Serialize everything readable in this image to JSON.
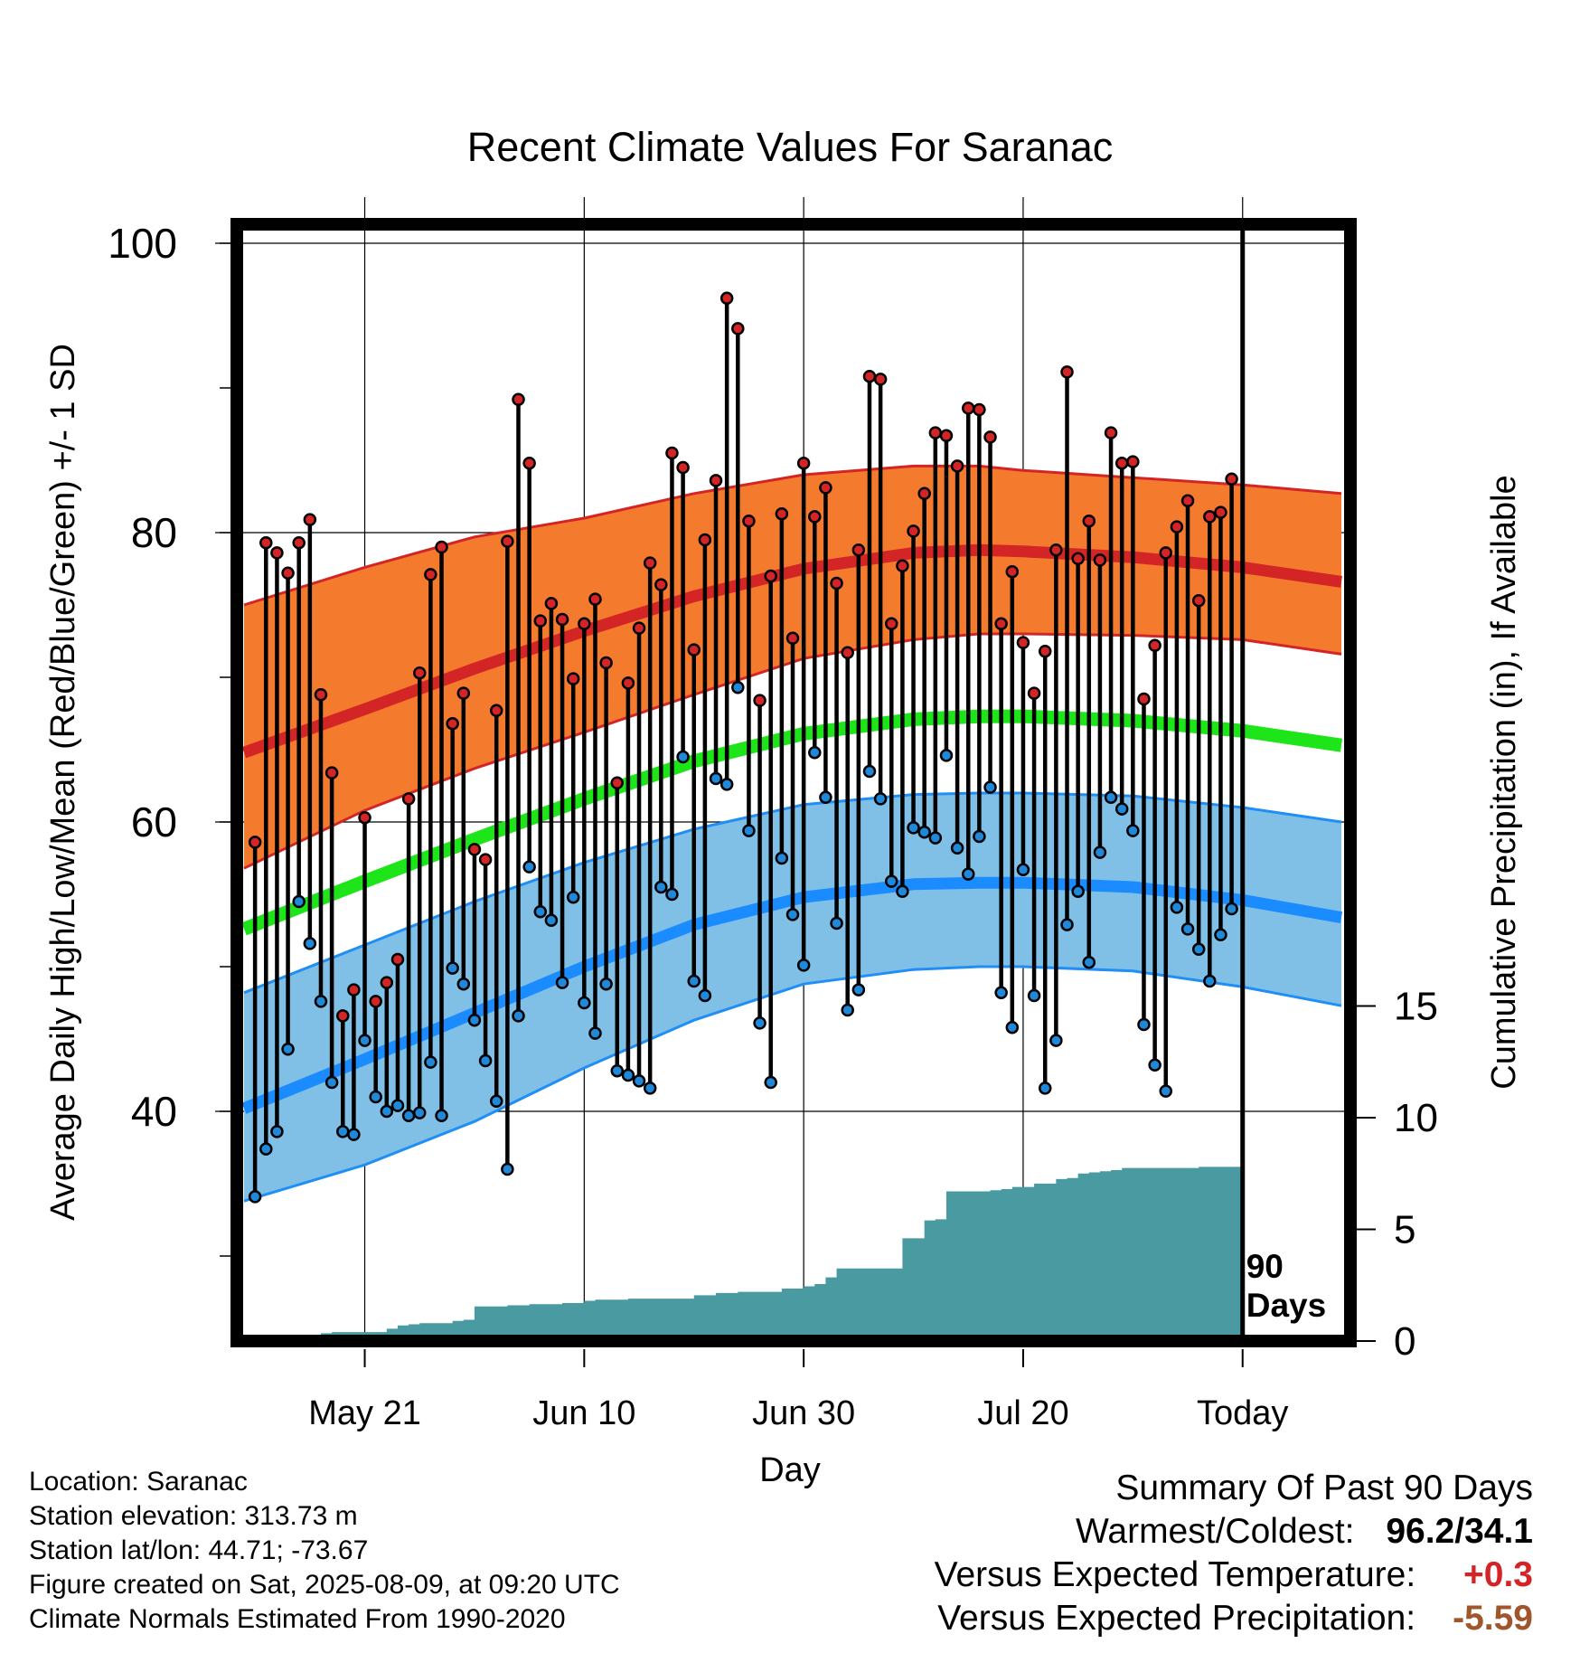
{
  "chart_data": {
    "type": "line",
    "title": "Recent Climate Values For Saranac",
    "xlabel": "Day",
    "ylabel": "Average Daily High/Low/Mean (Red/Blue/Green) +/- 1 SD",
    "y2label": "Cumulative Precipitation (in), If Available",
    "xlim": [
      -11,
      89
    ],
    "ylim": [
      26,
      102
    ],
    "y2lim": [
      0,
      20
    ],
    "x_tick_labels": [
      {
        "x": 0,
        "label": "May 21"
      },
      {
        "x": 20,
        "label": "Jun 10"
      },
      {
        "x": 40,
        "label": "Jun 30"
      },
      {
        "x": 60,
        "label": "Jul 20"
      },
      {
        "x": 80,
        "label": "Today"
      }
    ],
    "y_ticks": [
      40,
      60,
      80,
      100
    ],
    "y2_ticks": [
      0,
      5,
      10,
      15
    ],
    "grid": true,
    "today_marker": {
      "x": 80,
      "label_line1": "90",
      "label_line2": "Days"
    },
    "normals": {
      "x": [
        -11,
        0,
        10,
        20,
        30,
        40,
        50,
        56,
        60,
        70,
        80,
        89
      ],
      "high_mean": [
        64.8,
        67.8,
        70.6,
        73.2,
        75.6,
        77.5,
        78.6,
        78.8,
        78.7,
        78.3,
        77.6,
        76.6
      ],
      "high_upper": [
        75.0,
        77.6,
        79.7,
        81.0,
        82.7,
        84.0,
        84.6,
        84.6,
        84.3,
        83.8,
        83.3,
        82.7
      ],
      "high_lower": [
        56.8,
        60.8,
        63.7,
        66.2,
        68.8,
        71.3,
        72.6,
        73.0,
        73.0,
        72.9,
        72.6,
        71.6
      ],
      "mean": [
        52.6,
        55.9,
        58.8,
        61.6,
        64.2,
        66.1,
        67.1,
        67.3,
        67.3,
        67.0,
        66.3,
        65.3
      ],
      "low_mean": [
        40.2,
        43.6,
        46.8,
        50.0,
        52.9,
        54.8,
        55.7,
        55.8,
        55.8,
        55.5,
        54.6,
        53.4
      ],
      "low_upper": [
        48.2,
        51.5,
        54.5,
        57.2,
        59.5,
        61.2,
        61.9,
        62.0,
        62.0,
        61.8,
        61.0,
        60.0
      ],
      "low_lower": [
        33.8,
        36.3,
        39.3,
        43.0,
        46.3,
        48.8,
        49.8,
        50.0,
        50.0,
        49.7,
        48.6,
        47.3
      ]
    },
    "observed": {
      "x": [
        -10,
        -9,
        -8,
        -7,
        -6,
        -5,
        -4,
        -3,
        -2,
        -1,
        0,
        1,
        2,
        3,
        4,
        5,
        6,
        7,
        8,
        9,
        10,
        11,
        12,
        13,
        14,
        15,
        16,
        17,
        18,
        19,
        20,
        21,
        22,
        23,
        24,
        25,
        26,
        27,
        28,
        29,
        30,
        31,
        32,
        33,
        34,
        35,
        36,
        37,
        38,
        39,
        40,
        41,
        42,
        43,
        44,
        45,
        46,
        47,
        48,
        49,
        50,
        51,
        52,
        53,
        54,
        55,
        56,
        57,
        58,
        59,
        60,
        61,
        62,
        63,
        64,
        65,
        66,
        67,
        68,
        69,
        70,
        71,
        72,
        73,
        74,
        75,
        76,
        77,
        78,
        79
      ],
      "high": [
        58.6,
        79.3,
        78.6,
        77.2,
        79.3,
        80.9,
        68.8,
        63.4,
        46.6,
        48.4,
        60.3,
        47.6,
        48.9,
        50.5,
        61.6,
        70.3,
        77.1,
        79.0,
        66.8,
        68.9,
        58.1,
        57.4,
        67.7,
        79.4,
        89.2,
        84.8,
        73.9,
        75.1,
        74.0,
        69.9,
        73.7,
        75.4,
        71.0,
        62.7,
        69.6,
        73.4,
        77.9,
        76.4,
        85.5,
        84.5,
        71.9,
        79.5,
        83.6,
        96.2,
        94.1,
        80.8,
        68.4,
        77.0,
        81.3,
        72.7,
        84.8,
        81.1,
        83.1,
        76.5,
        71.7,
        78.8,
        90.8,
        90.6,
        73.7,
        77.7,
        80.1,
        82.7,
        86.9,
        86.7,
        84.6,
        88.6,
        88.5,
        86.6,
        73.7,
        77.3,
        72.4,
        68.9,
        71.8,
        78.8,
        91.1,
        78.2,
        80.8,
        78.1,
        86.9,
        84.8,
        84.9,
        68.5,
        72.2,
        78.6,
        80.4,
        82.2,
        75.3,
        81.1,
        81.4,
        83.7
      ],
      "low": [
        34.1,
        37.4,
        38.6,
        44.3,
        54.5,
        51.6,
        47.6,
        42.0,
        38.6,
        38.4,
        44.9,
        41.0,
        40.0,
        40.4,
        39.7,
        39.9,
        43.4,
        39.7,
        49.9,
        48.8,
        46.3,
        43.5,
        40.7,
        36.0,
        46.6,
        56.9,
        53.8,
        53.2,
        48.9,
        54.8,
        47.5,
        45.4,
        48.8,
        42.8,
        42.5,
        42.1,
        41.6,
        55.5,
        55.0,
        64.5,
        49.0,
        48.0,
        63.0,
        62.6,
        69.3,
        59.4,
        46.1,
        42.0,
        57.5,
        53.6,
        50.1,
        64.8,
        61.7,
        53.0,
        47.0,
        48.4,
        63.5,
        61.6,
        55.9,
        55.2,
        59.6,
        59.3,
        58.9,
        64.6,
        58.2,
        56.4,
        59.0,
        62.4,
        48.2,
        45.8,
        56.7,
        48.0,
        41.6,
        44.9,
        52.9,
        55.2,
        50.3,
        57.9,
        61.7,
        60.9,
        59.4,
        46.0,
        43.2,
        41.4,
        54.1,
        52.6,
        51.2,
        49.0,
        52.2,
        54.0
      ]
    },
    "precip": {
      "x": [
        -10,
        -6,
        -4,
        -3,
        -1,
        1,
        2,
        3,
        4,
        5,
        6,
        7,
        8,
        9,
        10,
        11,
        12,
        13,
        14,
        15,
        16,
        17,
        18,
        19,
        20,
        21,
        22,
        23,
        24,
        25,
        26,
        27,
        28,
        29,
        30,
        31,
        32,
        33,
        34,
        35,
        36,
        37,
        38,
        39,
        40,
        41,
        42,
        43,
        44,
        45,
        46,
        47,
        48,
        49,
        50,
        51,
        52,
        53,
        54,
        55,
        56,
        57,
        58,
        59,
        60,
        61,
        62,
        63,
        64,
        65,
        66,
        67,
        68,
        69,
        70,
        71,
        72,
        73,
        74,
        75,
        76,
        77,
        78,
        79
      ],
      "y": [
        0,
        0,
        0.35,
        0.4,
        0.4,
        0.4,
        0.55,
        0.7,
        0.75,
        0.8,
        0.8,
        0.8,
        0.9,
        0.95,
        1.55,
        1.55,
        1.55,
        1.6,
        1.6,
        1.65,
        1.65,
        1.65,
        1.7,
        1.7,
        1.8,
        1.85,
        1.85,
        1.85,
        1.9,
        1.9,
        1.9,
        1.9,
        1.9,
        1.9,
        2.05,
        2.05,
        2.15,
        2.15,
        2.2,
        2.2,
        2.2,
        2.2,
        2.35,
        2.35,
        2.45,
        2.55,
        2.85,
        3.25,
        3.25,
        3.25,
        3.25,
        3.25,
        3.25,
        4.6,
        4.6,
        5.4,
        5.45,
        6.7,
        6.7,
        6.7,
        6.7,
        6.75,
        6.8,
        6.9,
        6.9,
        7.05,
        7.05,
        7.25,
        7.3,
        7.5,
        7.55,
        7.6,
        7.65,
        7.75,
        7.75,
        7.75,
        7.75,
        7.75,
        7.75,
        7.75,
        7.8,
        7.8,
        7.8,
        7.8
      ]
    }
  },
  "colors": {
    "high_band": "#f47a2e",
    "high_line": "#d42526",
    "mean_line": "#1ee51a",
    "low_band": "#80bfe6",
    "low_band_edge": "#1f8ff5",
    "low_line": "#1a8cff",
    "high_dot": "#d42526",
    "low_dot": "#1f88d9",
    "precip": "#4a9aa2",
    "positive_anomaly": "#d42526",
    "negative_anomaly": "#a0552b"
  },
  "info": {
    "location": "Location: Saranac",
    "elevation": "Station elevation: 313.73 m",
    "latlon": "Station lat/lon: 44.71; -73.67",
    "created": "Figure created on Sat, 2025-08-09, at 09:20 UTC",
    "normals_period": "Climate Normals Estimated From 1990-2020"
  },
  "summary": {
    "heading": "Summary Of Past 90 Days",
    "warmest_coldest_label": "Warmest/Coldest:",
    "warmest_coldest_value": "96.2/34.1",
    "temp_label": "Versus Expected Temperature:",
    "temp_value": "+0.3",
    "precip_label": "Versus Expected Precipitation:",
    "precip_value": "-5.59"
  }
}
